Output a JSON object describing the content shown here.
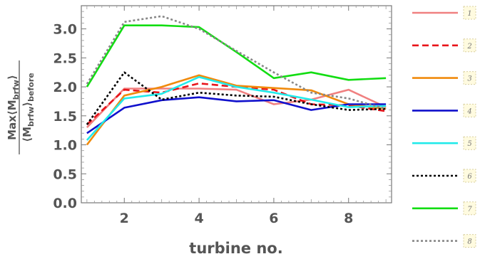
{
  "chart_data": {
    "type": "line",
    "xlabel": "turbine no.",
    "ylabel": {
      "numerator": "Max⟨M",
      "numerator_sub": "brfw",
      "numerator_end": "⟩",
      "denominator": "⟨M",
      "denominator_sub": "brfw",
      "denominator_end": "⟩",
      "denominator_tail": "before"
    },
    "xlim": [
      0.85,
      9.15
    ],
    "ylim": [
      0.0,
      3.4
    ],
    "x_ticks": [
      "2",
      "4",
      "6",
      "8"
    ],
    "y_ticks": [
      "0.0",
      "0.5",
      "1.0",
      "1.5",
      "2.0",
      "2.5",
      "3.0"
    ],
    "x": [
      1,
      2,
      3,
      4,
      5,
      6,
      7,
      8,
      9
    ],
    "grid": false,
    "legend_placement": "right",
    "series": [
      {
        "name": "1",
        "color": "#f08080",
        "dash": "solid",
        "values": [
          1.3,
          1.97,
          1.97,
          1.97,
          1.95,
          1.7,
          1.78,
          1.95,
          1.65
        ]
      },
      {
        "name": "2",
        "color": "#e8141a",
        "dash": "dashed",
        "values": [
          1.35,
          1.95,
          1.9,
          2.06,
          2.0,
          1.95,
          1.7,
          1.68,
          1.58
        ]
      },
      {
        "name": "3",
        "color": "#f08a0c",
        "dash": "solid",
        "values": [
          1.0,
          1.85,
          2.0,
          2.2,
          2.02,
          1.98,
          1.94,
          1.7,
          1.62
        ]
      },
      {
        "name": "4",
        "color": "#1010cc",
        "dash": "solid",
        "values": [
          1.2,
          1.64,
          1.77,
          1.82,
          1.75,
          1.77,
          1.6,
          1.7,
          1.7
        ]
      },
      {
        "name": "5",
        "color": "#22eaea",
        "dash": "solid",
        "values": [
          1.08,
          1.8,
          1.88,
          2.17,
          2.0,
          1.9,
          1.78,
          1.65,
          1.67
        ]
      },
      {
        "name": "6",
        "color": "#000000",
        "dash": "dotted",
        "values": [
          1.35,
          2.25,
          1.78,
          1.9,
          1.85,
          1.83,
          1.7,
          1.6,
          1.62
        ]
      },
      {
        "name": "7",
        "color": "#12dd12",
        "dash": "solid",
        "values": [
          2.0,
          3.06,
          3.06,
          3.03,
          2.6,
          2.15,
          2.25,
          2.12,
          2.15
        ]
      },
      {
        "name": "8",
        "color": "#888888",
        "dash": "dotted",
        "values": [
          2.05,
          3.12,
          3.22,
          3.0,
          2.62,
          2.25,
          1.9,
          1.8,
          1.62
        ]
      }
    ]
  }
}
